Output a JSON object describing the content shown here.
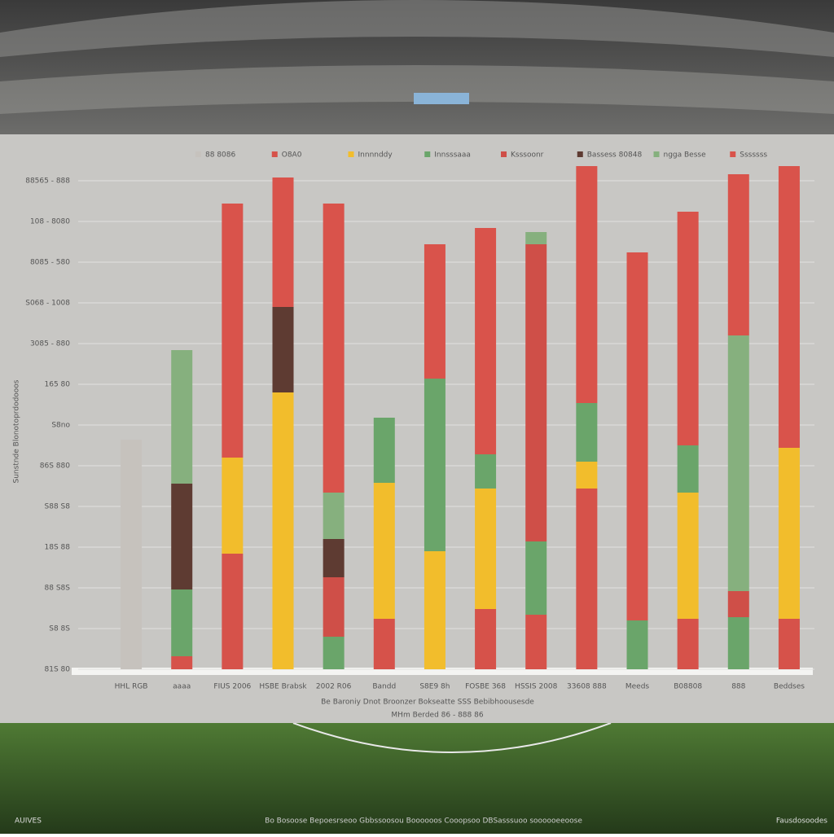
{
  "chart_data": {
    "type": "stacked_bar",
    "ylabel": "Sunstnde Blonotoprdodooos",
    "categories": [
      "HHL RGB",
      "aaaa",
      "FIUS 2006",
      "HSBE Brabsk",
      "2002 R06",
      "Bandd",
      "S8E9 8h",
      "FOSBE 368",
      "HSSIS 2008",
      "33608 888",
      "Meeds",
      "B08808",
      "888",
      "Beddses"
    ],
    "series": [
      {
        "name": "88 8086",
        "color": "#c6c2bd",
        "values": [
          282,
          null,
          null,
          null,
          null,
          null,
          null,
          null,
          null,
          null,
          null,
          null,
          null,
          null
        ]
      },
      {
        "name": "O8A0",
        "color": "#d6524a",
        "values": [
          null,
          16,
          142,
          null,
          null,
          62,
          null,
          74,
          67,
          222,
          null,
          62,
          null,
          62
        ]
      },
      {
        "name": "Innnnddy",
        "color": "#f2bd2c",
        "values": [
          null,
          null,
          118,
          340,
          null,
          167,
          145,
          148,
          null,
          33,
          null,
          155,
          null,
          210
        ]
      },
      {
        "name": "Innsssaaa",
        "color": "#6aa56a",
        "values": [
          null,
          82,
          null,
          null,
          40,
          80,
          212,
          42,
          90,
          72,
          60,
          58,
          64,
          null
        ]
      },
      {
        "name": "Ksssoonr",
        "color": "#cf4f48",
        "values": [
          null,
          null,
          null,
          null,
          73,
          null,
          null,
          null,
          365,
          null,
          null,
          null,
          32,
          null
        ]
      },
      {
        "name": "Bassess 80848",
        "color": "#5e3b32",
        "values": [
          null,
          130,
          null,
          105,
          47,
          null,
          null,
          null,
          null,
          null,
          null,
          null,
          null,
          null
        ]
      },
      {
        "name": "ngga Besse",
        "color": "#86b07e",
        "values": [
          null,
          164,
          null,
          null,
          57,
          null,
          null,
          null,
          15,
          null,
          null,
          null,
          314,
          null
        ]
      },
      {
        "name": "Sssssss",
        "color": "#d9534b",
        "values": [
          null,
          null,
          312,
          159,
          355,
          null,
          165,
          278,
          null,
          291,
          452,
          287,
          198,
          346
        ]
      }
    ],
    "ylim": [
      0,
      620
    ],
    "yticks": [
      {
        "value": 0,
        "label": "81S 80"
      },
      {
        "value": 50,
        "label": "S8 8S"
      },
      {
        "value": 100,
        "label": "88 S8S"
      },
      {
        "value": 150,
        "label": "18S 88"
      },
      {
        "value": 200,
        "label": "S88 S8"
      },
      {
        "value": 250,
        "label": "86S 880"
      },
      {
        "value": 300,
        "label": "S8no"
      },
      {
        "value": 350,
        "label": "165 80"
      },
      {
        "value": 400,
        "label": "3085 - 880"
      },
      {
        "value": 450,
        "label": "S068 - 1008"
      },
      {
        "value": 500,
        "label": "8085 - 580"
      },
      {
        "value": 550,
        "label": "108 - 8080"
      },
      {
        "value": 600,
        "label": "88565 - 888"
      }
    ],
    "grid": true,
    "caption": [
      "Be Baroniy Dnot Broonzer Bokseatte SSS Bebibhoousesde",
      "MHm Berded 86 - 888 86"
    ],
    "footer": [
      "AUIVES",
      "Bo Bosoose Bepoesrseoo Gbbssoosou Boooooos Cooopsoo DBSasssuoo soooooeeoose",
      "Fausdosoodes"
    ]
  }
}
